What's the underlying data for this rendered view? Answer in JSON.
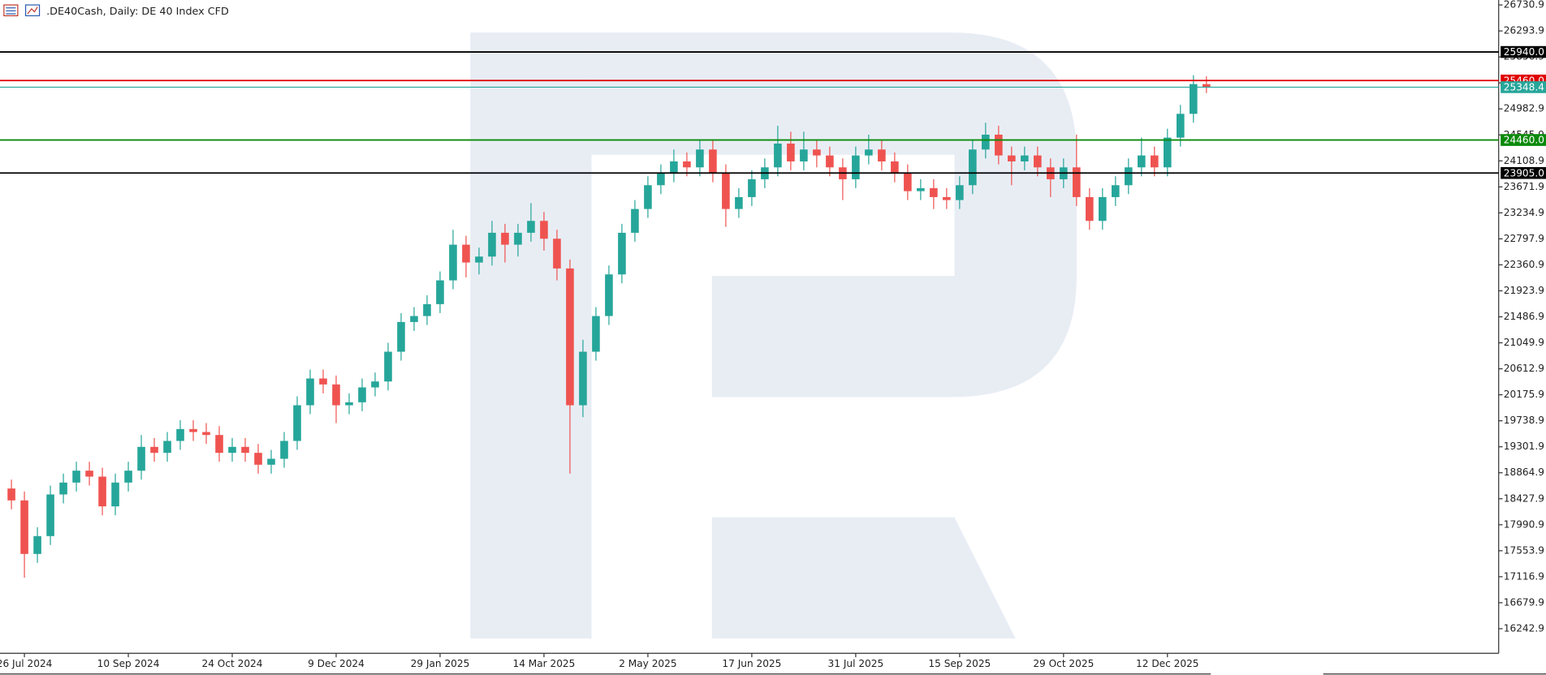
{
  "chart_data": {
    "type": "candlestick",
    "title": ".DE40Cash, Daily:  DE 40 Index CFD",
    "categories": [
      null,
      "26 Jul 2024",
      null,
      null,
      null,
      null,
      null,
      null,
      null,
      "10 Sep 2024",
      null,
      null,
      null,
      null,
      null,
      null,
      null,
      "24 Oct 2024",
      null,
      null,
      null,
      null,
      null,
      null,
      null,
      "9 Dec 2024",
      null,
      null,
      null,
      null,
      null,
      null,
      null,
      "29 Jan 2025",
      null,
      null,
      null,
      null,
      null,
      null,
      null,
      "14 Mar 2025",
      null,
      null,
      null,
      null,
      null,
      null,
      null,
      "2 May 2025",
      null,
      null,
      null,
      null,
      null,
      null,
      null,
      "17 Jun 2025",
      null,
      null,
      null,
      null,
      null,
      null,
      null,
      "31 Jul 2025",
      null,
      null,
      null,
      null,
      null,
      null,
      null,
      "15 Sep 2025",
      null,
      null,
      null,
      null,
      null,
      null,
      null,
      "29 Oct 2025",
      null,
      null,
      null,
      null,
      null,
      null,
      null,
      "12 Dec 2025",
      null,
      null,
      null
    ],
    "open": [
      18600,
      18400,
      17500,
      17800,
      18500,
      18700,
      18900,
      18800,
      18300,
      18700,
      18900,
      19300,
      19200,
      19400,
      19600,
      19550,
      19500,
      19200,
      19300,
      19200,
      19000,
      19100,
      19400,
      20000,
      20450,
      20350,
      20000,
      20050,
      20300,
      20400,
      20900,
      21400,
      21500,
      21700,
      22100,
      22700,
      22400,
      22500,
      22900,
      22700,
      22900,
      23100,
      22800,
      22300,
      20000,
      20900,
      21500,
      22200,
      22900,
      23300,
      23700,
      23900,
      24100,
      24000,
      24300,
      23900,
      23300,
      23500,
      23800,
      24000,
      24400,
      24100,
      24300,
      24200,
      24000,
      23800,
      24200,
      24300,
      24100,
      23900,
      23600,
      23650,
      23500,
      23450,
      23700,
      24300,
      24550,
      24200,
      24100,
      24200,
      24000,
      23800,
      24000,
      23500,
      23100,
      23500,
      23700,
      24000,
      24200,
      24000,
      24500,
      24900,
      25400
    ],
    "high": [
      18750,
      18550,
      17950,
      18650,
      18850,
      19050,
      19050,
      18950,
      18850,
      19050,
      19500,
      19450,
      19550,
      19750,
      19750,
      19700,
      19650,
      19450,
      19450,
      19350,
      19250,
      19550,
      20150,
      20600,
      20600,
      20500,
      20200,
      20450,
      20550,
      21050,
      21550,
      21650,
      21850,
      22250,
      22950,
      22850,
      22650,
      23100,
      23050,
      23050,
      23400,
      23250,
      22950,
      22450,
      21100,
      21650,
      22350,
      23050,
      23450,
      23850,
      24050,
      24300,
      24250,
      24450,
      24450,
      24050,
      23650,
      23950,
      24150,
      24700,
      24600,
      24600,
      24450,
      24350,
      24150,
      24350,
      24550,
      24450,
      24250,
      24050,
      23800,
      23800,
      23650,
      23850,
      24450,
      24750,
      24700,
      24350,
      24350,
      24350,
      24150,
      24150,
      24550,
      23650,
      23650,
      23850,
      24150,
      24500,
      24350,
      24650,
      25050,
      25550,
      25530
    ],
    "low": [
      18250,
      17100,
      17350,
      17650,
      18350,
      18550,
      18650,
      18150,
      18150,
      18550,
      18750,
      19050,
      19050,
      19250,
      19400,
      19350,
      19050,
      19050,
      19050,
      18850,
      18850,
      18950,
      19250,
      19850,
      20200,
      19700,
      19850,
      19900,
      20150,
      20250,
      20750,
      21250,
      21350,
      21550,
      21950,
      22150,
      22200,
      22350,
      22400,
      22500,
      22750,
      22600,
      22100,
      18850,
      19800,
      20750,
      21350,
      22050,
      22750,
      23150,
      23550,
      23750,
      23850,
      23850,
      23750,
      23000,
      23150,
      23350,
      23650,
      23850,
      23950,
      23950,
      24000,
      23850,
      23450,
      23650,
      24050,
      23950,
      23750,
      23450,
      23450,
      23300,
      23300,
      23300,
      23550,
      24150,
      24050,
      23700,
      23950,
      23850,
      23500,
      23650,
      23350,
      22950,
      22950,
      23350,
      23550,
      23850,
      23850,
      23850,
      24350,
      24750,
      25250
    ],
    "close": [
      18400,
      17500,
      17800,
      18500,
      18700,
      18900,
      18800,
      18300,
      18700,
      18900,
      19300,
      19200,
      19400,
      19600,
      19550,
      19500,
      19200,
      19300,
      19200,
      19000,
      19100,
      19400,
      20000,
      20450,
      20350,
      20000,
      20050,
      20300,
      20400,
      20900,
      21400,
      21500,
      21700,
      22100,
      22700,
      22400,
      22500,
      22900,
      22700,
      22900,
      23100,
      22800,
      22300,
      20000,
      20900,
      21500,
      22200,
      22900,
      23300,
      23700,
      23900,
      24100,
      24000,
      24300,
      23900,
      23300,
      23500,
      23800,
      24000,
      24400,
      24100,
      24300,
      24200,
      24000,
      23800,
      24200,
      24300,
      24100,
      23900,
      23600,
      23650,
      23500,
      23450,
      23700,
      24300,
      24550,
      24200,
      24100,
      24200,
      24000,
      23800,
      24000,
      23500,
      23100,
      23500,
      23700,
      24000,
      24200,
      24000,
      24500,
      24900,
      25400,
      25348.4
    ],
    "up_color": "#26a69a",
    "down_color": "#ef5350",
    "ylim": [
      15829,
      26814
    ],
    "yticks": [
      16242.9,
      16679.9,
      17116.9,
      17553.9,
      17990.9,
      18427.9,
      18864.9,
      19301.9,
      19738.9,
      20175.9,
      20612.9,
      21049.9,
      21486.9,
      21923.9,
      22360.9,
      22797.9,
      23234.9,
      23671.9,
      24108.9,
      24545.9,
      24982.9,
      25419.9,
      25856.9,
      26293.9,
      26730.9
    ],
    "levels": [
      {
        "value": 25940,
        "label": "25940.0",
        "color": "#000000"
      },
      {
        "value": 25460,
        "label": "25460.0",
        "color": "#e00000"
      },
      {
        "value": 25348.4,
        "label": "25348.4",
        "color": "#26a69a"
      },
      {
        "value": 24460,
        "label": "24460.0",
        "color": "#0a8a0a"
      },
      {
        "value": 23905,
        "label": "23905.0",
        "color": "#000000"
      }
    ]
  }
}
